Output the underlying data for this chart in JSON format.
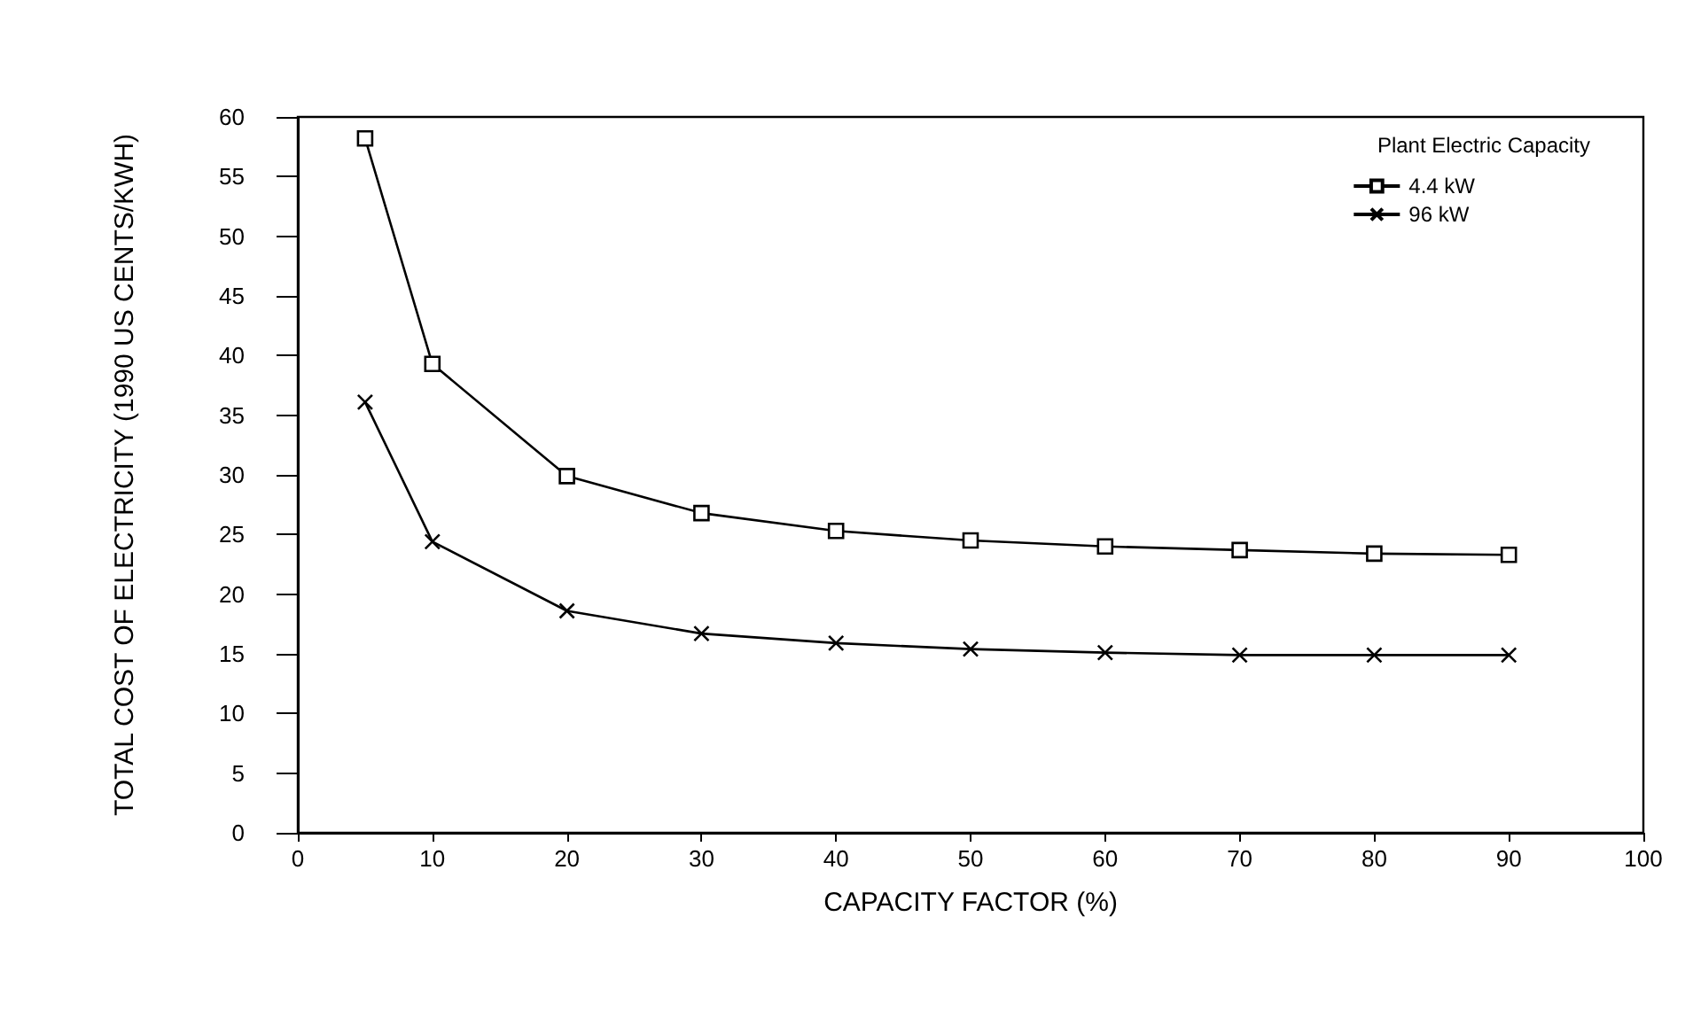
{
  "chart_data": {
    "type": "line",
    "xlabel": "CAPACITY FACTOR (%)",
    "ylabel": "TOTAL COST OF ELECTRICITY (1990 US CENTS/KWH)",
    "legend_title": "Plant Electric Capacity",
    "legend": "top right",
    "x": [
      5,
      10,
      20,
      30,
      40,
      50,
      60,
      70,
      80,
      90
    ],
    "series": [
      {
        "name": "4.4 kW",
        "color": "#000000",
        "marker": "square",
        "values": [
          58.2,
          39.3,
          29.9,
          26.8,
          25.3,
          24.5,
          24.0,
          23.7,
          23.4,
          23.3
        ]
      },
      {
        "name": "96 kW",
        "color": "#000000",
        "marker": "cross",
        "values": [
          36.1,
          24.4,
          18.6,
          16.7,
          15.9,
          15.4,
          15.1,
          14.9,
          14.9,
          14.9
        ]
      }
    ],
    "xlim": [
      0,
      100
    ],
    "xticks": [
      0,
      10,
      20,
      30,
      40,
      50,
      60,
      70,
      80,
      90,
      100
    ],
    "ylim": [
      0,
      60
    ],
    "yticks": [
      0,
      5,
      10,
      15,
      20,
      25,
      30,
      35,
      40,
      45,
      50,
      55,
      60
    ],
    "grid": false,
    "line_style": "solid"
  }
}
